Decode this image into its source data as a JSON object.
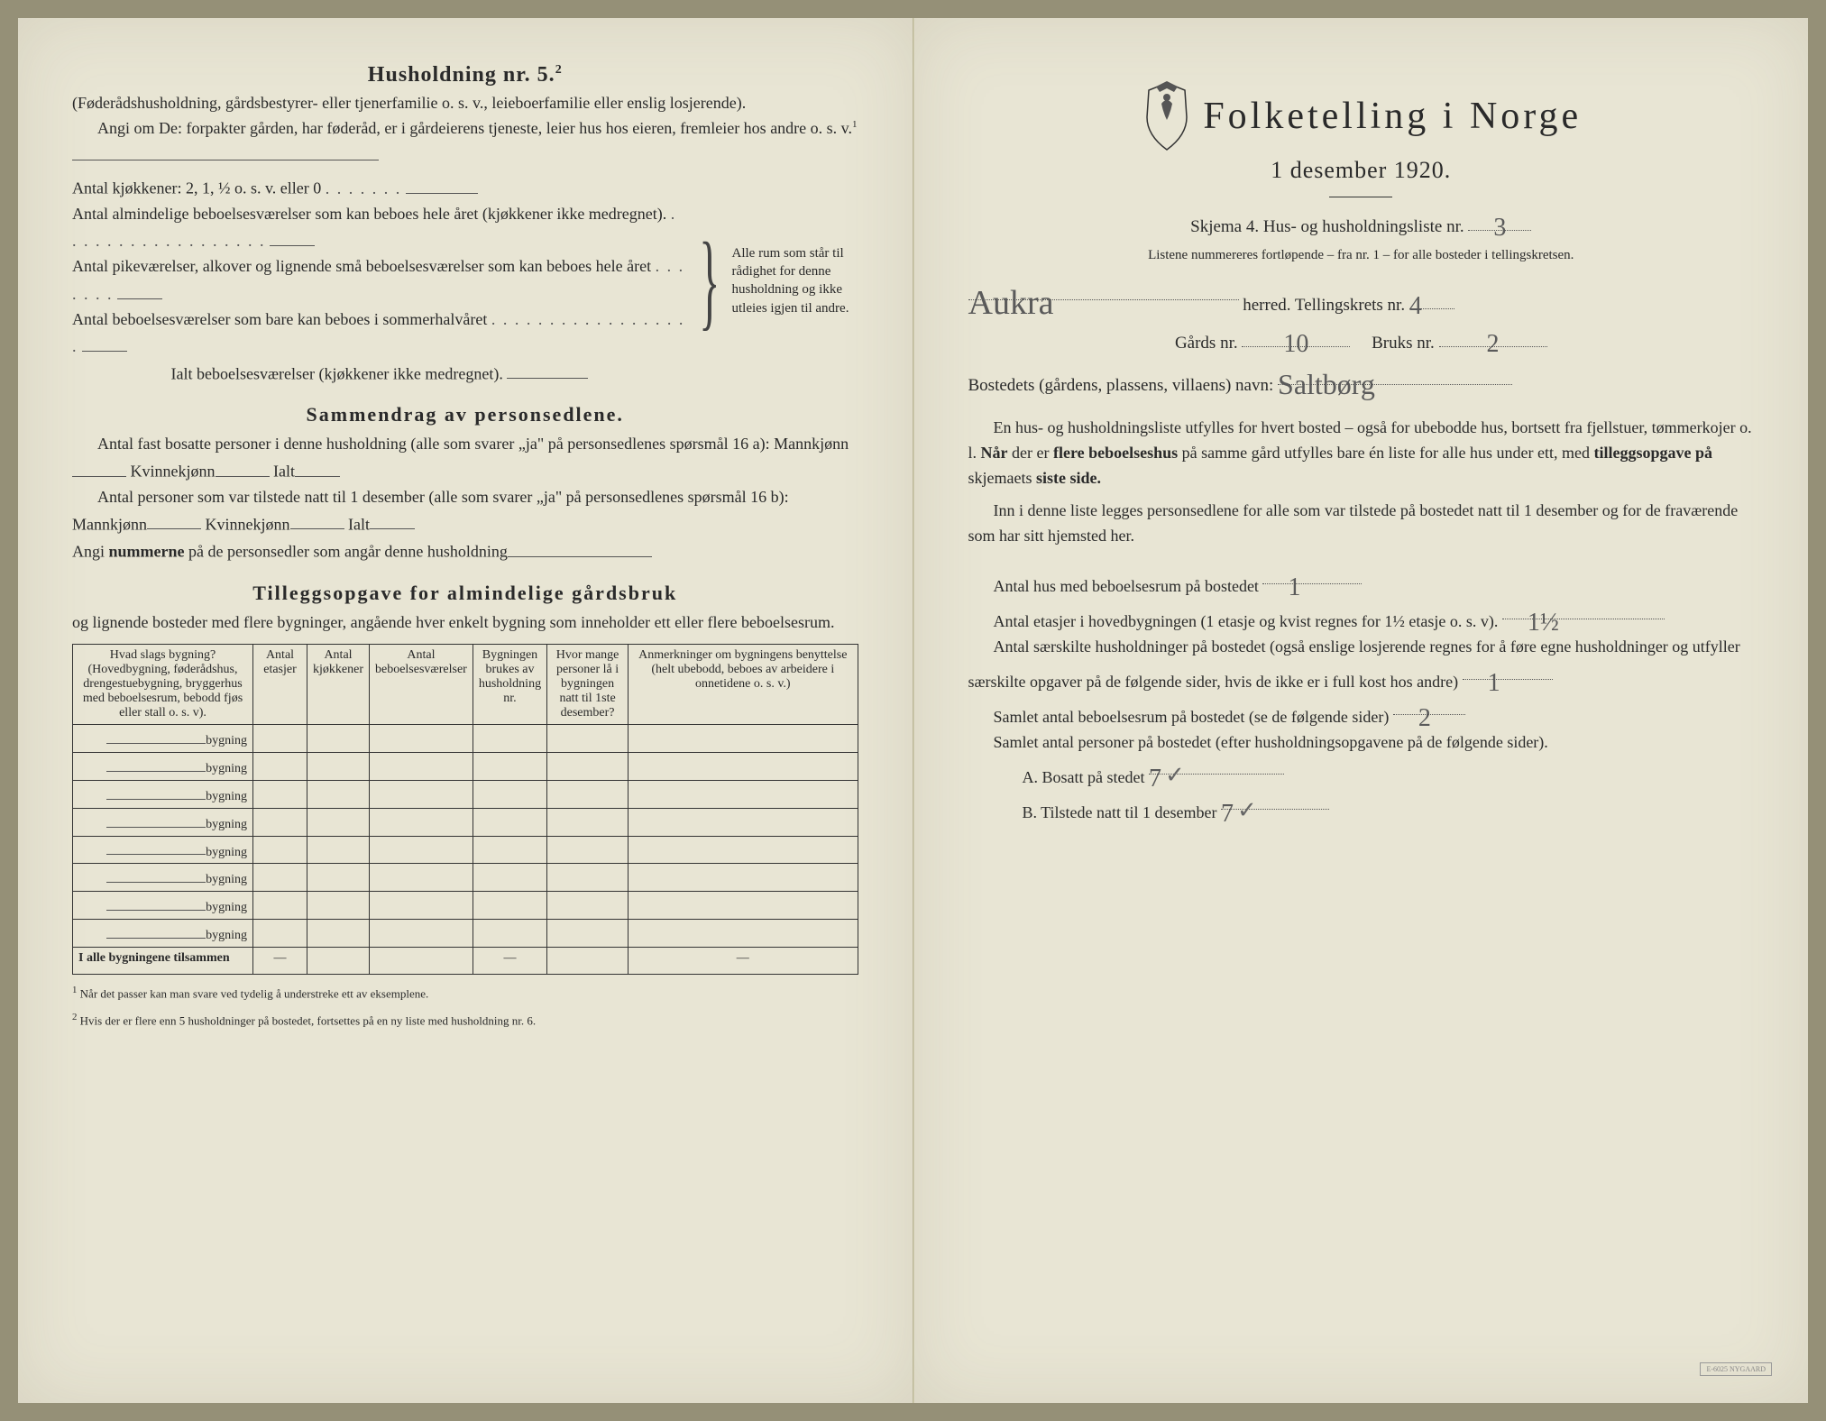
{
  "left": {
    "heading": "Husholdning nr. 5.",
    "heading_sup": "2",
    "intro_paren": "(Føderådshusholdning, gårdsbestyrer- eller tjenerfamilie o. s. v., leieboerfamilie eller enslig losjerende).",
    "intro_body": "Angi om De: forpakter gården, har føderåd, er i gårdeierens tjeneste, leier hus hos eieren, fremleier hos andre o. s. v.",
    "kitchens_label": "Antal kjøkkener: 2, 1, ½ o. s. v. eller 0",
    "rooms1": "Antal almindelige beboelsesværelser som kan beboes hele året (kjøkkener ikke medregnet).",
    "rooms2": "Antal pikeværelser, alkover og lignende små beboelsesværelser som kan beboes hele året",
    "rooms3": "Antal beboelsesværelser som bare kan beboes i sommerhalvåret",
    "rooms_total": "Ialt beboelsesværelser (kjøkkener ikke medregnet).",
    "brace_text": "Alle rum som står til rådighet for denne husholdning og ikke utleies igjen til andre.",
    "summary_heading": "Sammendrag av personsedlene.",
    "summary_line1a": "Antal fast bosatte personer i denne husholdning (alle som svarer „ja\" på personsedlenes spørsmål 16 a): Mannkjønn",
    "summary_line1b": "Kvinnekjønn",
    "summary_line1c": "Ialt",
    "summary_line2a": "Antal personer som var tilstede natt til 1 desember (alle som svarer „ja\" på personsedlenes spørsmål 16 b): Mannkjønn",
    "summary_line2b": "Kvinnekjønn",
    "summary_line2c": "Ialt",
    "summary_line3": "Angi nummerne på de personsedler som angår denne husholdning",
    "supp_heading": "Tilleggsopgave for almindelige gårdsbruk",
    "supp_intro": "og lignende bosteder med flere bygninger, angående hver enkelt bygning som inneholder ett eller flere beboelsesrum.",
    "table": {
      "headers": [
        "Hvad slags bygning?\n(Hovedbygning, føderådshus, drengestuebygning, bryggerhus med beboelsesrum, bebodd fjøs eller stall o. s. v).",
        "Antal etasjer",
        "Antal kjøkkener",
        "Antal beboelsesværelser",
        "Bygningen brukes av husholdning nr.",
        "Hvor mange personer lå i bygningen natt til 1ste desember?",
        "Anmerkninger om bygningens benyttelse (helt ubebodd, beboes av arbeidere i onnetidene o. s. v.)"
      ],
      "row_label": "bygning",
      "row_count": 8,
      "footer_label": "I alle bygningene tilsammen"
    },
    "footnote1": "Når det passer kan man svare ved tydelig å understreke ett av eksemplene.",
    "footnote2": "Hvis der er flere enn 5 husholdninger på bostedet, fortsettes på en ny liste med husholdning nr. 6."
  },
  "right": {
    "main_title": "Folketelling i Norge",
    "subtitle": "1 desember 1920.",
    "skjema_line": "Skjema 4. Hus- og husholdningsliste nr.",
    "skjema_nr": "3",
    "list_note": "Listene nummereres fortløpende – fra nr. 1 – for alle bosteder i tellingskretsen.",
    "herred_label": "herred.   Tellingskrets nr.",
    "herred_value": "Aukra",
    "krets_nr": "4",
    "gards_label": "Gårds nr.",
    "gards_nr": "10",
    "bruks_label": "Bruks nr.",
    "bruks_nr": "2",
    "bosted_label": "Bostedets (gårdens, plassens, villaens) navn:",
    "bosted_value": "Saltbørg",
    "para1": "En hus- og husholdningsliste utfylles for hvert bosted – også for ubebodde hus, bortsett fra fjellstuer, tømmerkojer o. l. Når der er flere beboelseshus på samme gård utfylles bare én liste for alle hus under ett, med tilleggsopgave på skjemaets siste side.",
    "para2": "Inn i denne liste legges personsedlene for alle som var tilstede på bostedet natt til 1 desember og for de fraværende som har sitt hjemsted her.",
    "q1_label": "Antal hus med beboelsesrum på bostedet",
    "q1_value": "1",
    "q2_label": "Antal etasjer i hovedbygningen (1 etasje og kvist regnes for 1½ etasje o. s. v).",
    "q2_value": "1½",
    "q3_label": "Antal særskilte husholdninger på bostedet (også enslige losjerende regnes for å føre egne husholdninger og utfyller særskilte opgaver på de følgende sider, hvis de ikke er i full kost hos andre)",
    "q3_value": "1",
    "q4_label": "Samlet antal beboelsesrum på bostedet (se de følgende sider)",
    "q4_value": "2",
    "q5_label": "Samlet antal personer på bostedet (efter husholdningsopgavene på de følgende sider).",
    "q5a_label": "A. Bosatt på stedet",
    "q5a_value": "7",
    "q5b_label": "B. Tilstede natt til 1 desember",
    "q5b_value": "7"
  }
}
